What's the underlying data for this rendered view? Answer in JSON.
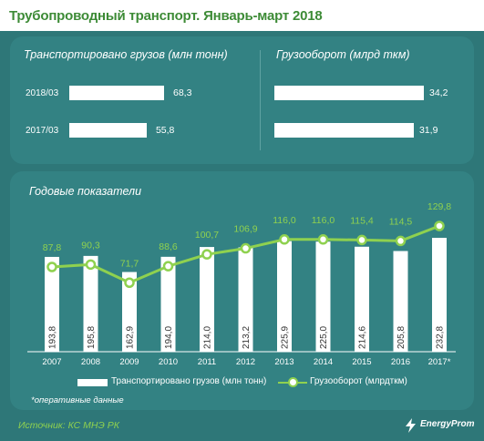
{
  "title": "Трубопроводный транспорт. Январь-март 2018",
  "left_panel": {
    "subtitle": "Транспортировано грузов (млн тонн)",
    "rows": [
      {
        "label": "2018/03",
        "value": 68.3,
        "value_label": "68,3"
      },
      {
        "label": "2017/03",
        "value": 55.8,
        "value_label": "55,8"
      }
    ]
  },
  "right_panel": {
    "subtitle": "Грузооборот (млрд ткм)",
    "rows": [
      {
        "value": 34.2,
        "value_label": "34,2"
      },
      {
        "value": 31.9,
        "value_label": "31,9"
      }
    ]
  },
  "annual_subtitle": "Годовые показатели",
  "legend": {
    "bar_label": "Транспортировано грузов (млн тонн)",
    "line_label": "Грузооборот (млрдткм)"
  },
  "footnote": "*оперативные данные",
  "source": "Источник: КС МНЭ РК",
  "logo_text": "EnergyProm",
  "colors": {
    "background": "#2e7778",
    "panel": "#338283",
    "bars": "#ffffff",
    "line": "#8fd14f",
    "title": "#3d8b36"
  },
  "chart_data": [
    {
      "type": "bar",
      "orientation": "horizontal",
      "categories": [
        "2018/03",
        "2017/03"
      ],
      "values": [
        68.3,
        55.8
      ],
      "title": "Транспортировано грузов (млн тонн)"
    },
    {
      "type": "bar",
      "orientation": "horizontal",
      "categories": [
        "2018/03",
        "2017/03"
      ],
      "values": [
        34.2,
        31.9
      ],
      "title": "Грузооборот (млрд ткм)"
    },
    {
      "type": "bar",
      "title": "Годовые показатели",
      "categories": [
        "2007",
        "2008",
        "2009",
        "2010",
        "2011",
        "2012",
        "2013",
        "2014",
        "2015",
        "2016",
        "2017*"
      ],
      "series": [
        {
          "name": "Транспортировано грузов (млн тонн)",
          "type": "bar",
          "values": [
            193.8,
            195.8,
            162.9,
            194.0,
            214.0,
            213.2,
            225.9,
            225.0,
            214.6,
            205.8,
            232.8
          ],
          "labels": [
            "193,8",
            "195,8",
            "162,9",
            "194,0",
            "214,0",
            "213,2",
            "225,9",
            "225,0",
            "214,6",
            "205,8",
            "232,8"
          ]
        },
        {
          "name": "Грузооборот (млрдткм)",
          "type": "line",
          "values": [
            87.8,
            90.3,
            71.7,
            88.6,
            100.7,
            106.9,
            116.0,
            116.0,
            115.4,
            114.5,
            129.8
          ],
          "labels": [
            "87,8",
            "90,3",
            "71,7",
            "88,6",
            "100,7",
            "106,9",
            "116,0",
            "116,0",
            "115,4",
            "114,5",
            "129,8"
          ]
        }
      ]
    }
  ]
}
